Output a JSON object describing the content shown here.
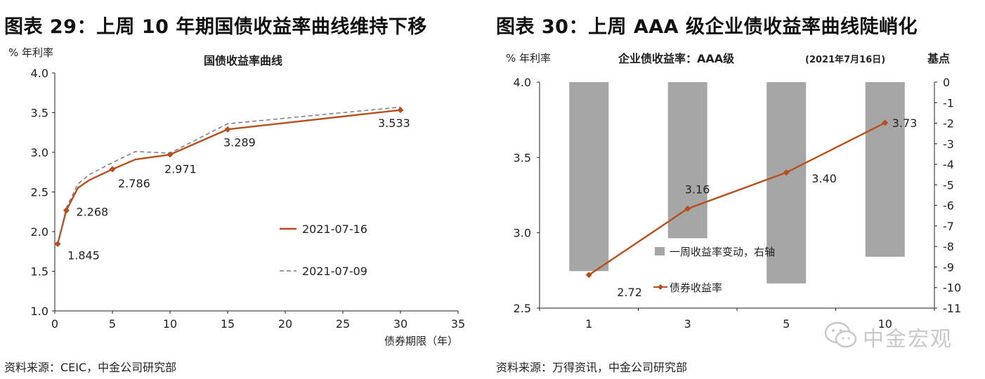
{
  "charts": [
    {
      "figure_title": "图表 29：上周 10 年期国债收益率曲线维持下移",
      "source": "资料来源：CEIC，中金公司研究部",
      "chart_data": {
        "type": "line",
        "title": "国债收益率曲线",
        "ylabel": "% 年利率",
        "xlabel": "债券期限（年）",
        "xlim": [
          0,
          35
        ],
        "ylim": [
          1.0,
          4.0
        ],
        "xticks": [
          0,
          5,
          10,
          15,
          20,
          25,
          30,
          35
        ],
        "yticks": [
          "1.0",
          "1.5",
          "2.0",
          "2.5",
          "3.0",
          "3.5",
          "4.0"
        ],
        "grid": false,
        "legend_position": "lower-right",
        "series": [
          {
            "name": "2021-07-16",
            "style": "solid",
            "color": "#b5501d",
            "x": [
              0.25,
              1,
              2,
              3,
              5,
              7,
              10,
              15,
              30
            ],
            "y": [
              1.845,
              2.268,
              2.55,
              2.65,
              2.786,
              2.91,
              2.971,
              3.289,
              3.533
            ],
            "point_labels": [
              {
                "index": 0,
                "text": "1.845"
              },
              {
                "index": 1,
                "text": "2.268"
              },
              {
                "index": 4,
                "text": "2.786"
              },
              {
                "index": 6,
                "text": "2.971"
              },
              {
                "index": 7,
                "text": "3.289"
              },
              {
                "index": 8,
                "text": "3.533"
              }
            ]
          },
          {
            "name": "2021-07-09",
            "style": "dashed",
            "color": "#7a7a90",
            "x": [
              0.25,
              1,
              2,
              3,
              5,
              7,
              10,
              15,
              30
            ],
            "y": [
              1.86,
              2.3,
              2.6,
              2.72,
              2.87,
              3.01,
              2.99,
              3.36,
              3.57
            ]
          }
        ]
      }
    },
    {
      "figure_title": "图表 30：上周 AAA 级企业债收益率曲线陡峭化",
      "source": "资料来源：万得资讯，中金公司研究部",
      "chart_data": {
        "type": "bar",
        "title": "企业债收益率：AAA级",
        "subtitle": "(2021年7月16日)",
        "ylabel": "% 年利率",
        "y2label": "基点",
        "categories": [
          "1",
          "3",
          "5",
          "10"
        ],
        "ylim": [
          2.5,
          4.0
        ],
        "yticks": [
          "2.5",
          "3.0",
          "3.5",
          "4.0"
        ],
        "y2lim": [
          -11,
          0
        ],
        "y2ticks": [
          0,
          -1,
          -2,
          -3,
          -4,
          -5,
          -6,
          -7,
          -8,
          -9,
          -10,
          -11
        ],
        "grid": false,
        "legend_position": "bottom-center",
        "series": [
          {
            "name": "一周收益率变动，右轴",
            "type": "bar",
            "axis": "right",
            "color": "#a6a6a6",
            "values": [
              -9.2,
              -7.6,
              -9.8,
              -8.5
            ]
          },
          {
            "name": "债券收益率",
            "type": "line",
            "axis": "left",
            "color": "#b5501d",
            "values": [
              2.72,
              3.16,
              3.4,
              3.73
            ],
            "labels": [
              "2.72",
              "3.16",
              "3.40",
              "3.73"
            ]
          }
        ]
      }
    }
  ],
  "watermark": {
    "text": "中金宏观",
    "icon": "wechat-icon"
  }
}
